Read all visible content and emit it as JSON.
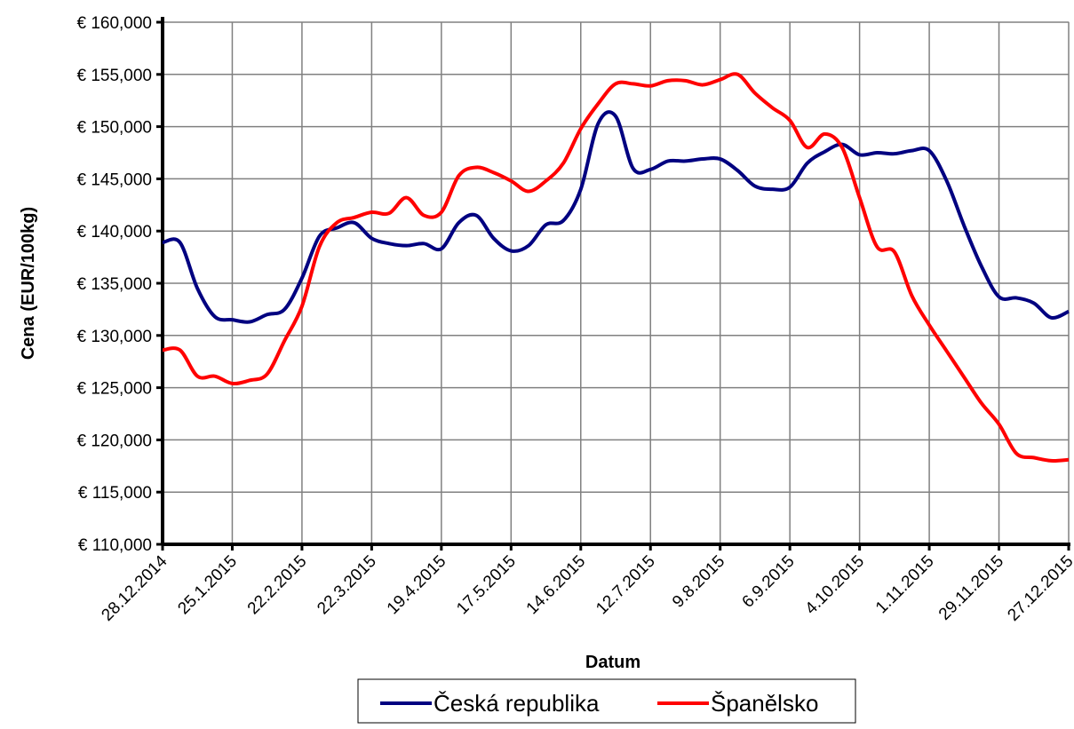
{
  "chart_data": {
    "type": "line",
    "x_label": "Datum",
    "y_label": "Cena (EUR/100kg)",
    "categories": [
      "28.12.2014",
      null,
      null,
      null,
      "25.1.2015",
      null,
      null,
      null,
      "22.2.2015",
      null,
      null,
      null,
      "22.3.2015",
      null,
      null,
      null,
      "19.4.2015",
      null,
      null,
      null,
      "17.5.2015",
      null,
      null,
      null,
      "14.6.2015",
      null,
      null,
      null,
      "12.7.2015",
      null,
      null,
      null,
      "9.8.2015",
      null,
      null,
      null,
      "6.9.2015",
      null,
      null,
      null,
      "4.10.2015",
      null,
      null,
      null,
      "1.11.2015",
      null,
      null,
      null,
      "29.11.2015",
      null,
      null,
      null,
      "27.12.2015"
    ],
    "series": [
      {
        "name": "Česká republika",
        "color": "#000080",
        "values": [
          138.9,
          138.9,
          134.5,
          131.8,
          131.5,
          131.3,
          132.0,
          132.5,
          135.5,
          139.5,
          140.3,
          140.8,
          139.3,
          138.8,
          138.6,
          138.8,
          138.3,
          140.8,
          141.5,
          139.3,
          138.1,
          138.6,
          140.6,
          141.0,
          144.0,
          150.3,
          151.0,
          146.0,
          145.9,
          146.7,
          146.7,
          146.9,
          146.9,
          145.8,
          144.3,
          144.0,
          144.2,
          146.5,
          147.6,
          148.3,
          147.3,
          147.5,
          147.4,
          147.7,
          147.7,
          144.8,
          140.5,
          136.6,
          133.7,
          133.6,
          133.1,
          131.7,
          132.3
        ]
      },
      {
        "name": "Španělsko",
        "color": "#ff0000",
        "values": [
          128.6,
          128.6,
          126.1,
          126.1,
          125.4,
          125.7,
          126.3,
          129.5,
          132.8,
          138.5,
          140.8,
          141.3,
          141.8,
          141.7,
          143.2,
          141.5,
          141.8,
          145.3,
          146.1,
          145.6,
          144.8,
          143.8,
          144.8,
          146.5,
          149.8,
          152.2,
          154.1,
          154.1,
          153.9,
          154.4,
          154.4,
          154.0,
          154.5,
          155.0,
          153.2,
          151.8,
          150.6,
          148.0,
          149.3,
          148.0,
          143.2,
          138.5,
          138.0,
          133.8,
          131.0,
          128.5,
          126.0,
          123.5,
          121.5,
          118.7,
          118.3,
          118.0,
          118.1
        ]
      }
    ],
    "ylim": [
      110,
      160
    ],
    "yticks": [
      {
        "value": 110,
        "label": "€ 110,000"
      },
      {
        "value": 115,
        "label": "€ 115,000"
      },
      {
        "value": 120,
        "label": "€ 120,000"
      },
      {
        "value": 125,
        "label": "€ 125,000"
      },
      {
        "value": 130,
        "label": "€ 130,000"
      },
      {
        "value": 135,
        "label": "€ 135,000"
      },
      {
        "value": 140,
        "label": "€ 140,000"
      },
      {
        "value": 145,
        "label": "€ 145,000"
      },
      {
        "value": 150,
        "label": "€ 150,000"
      },
      {
        "value": 155,
        "label": "€ 155,000"
      },
      {
        "value": 160,
        "label": "€ 160,000"
      }
    ],
    "grid": true,
    "legend": "bottom"
  }
}
